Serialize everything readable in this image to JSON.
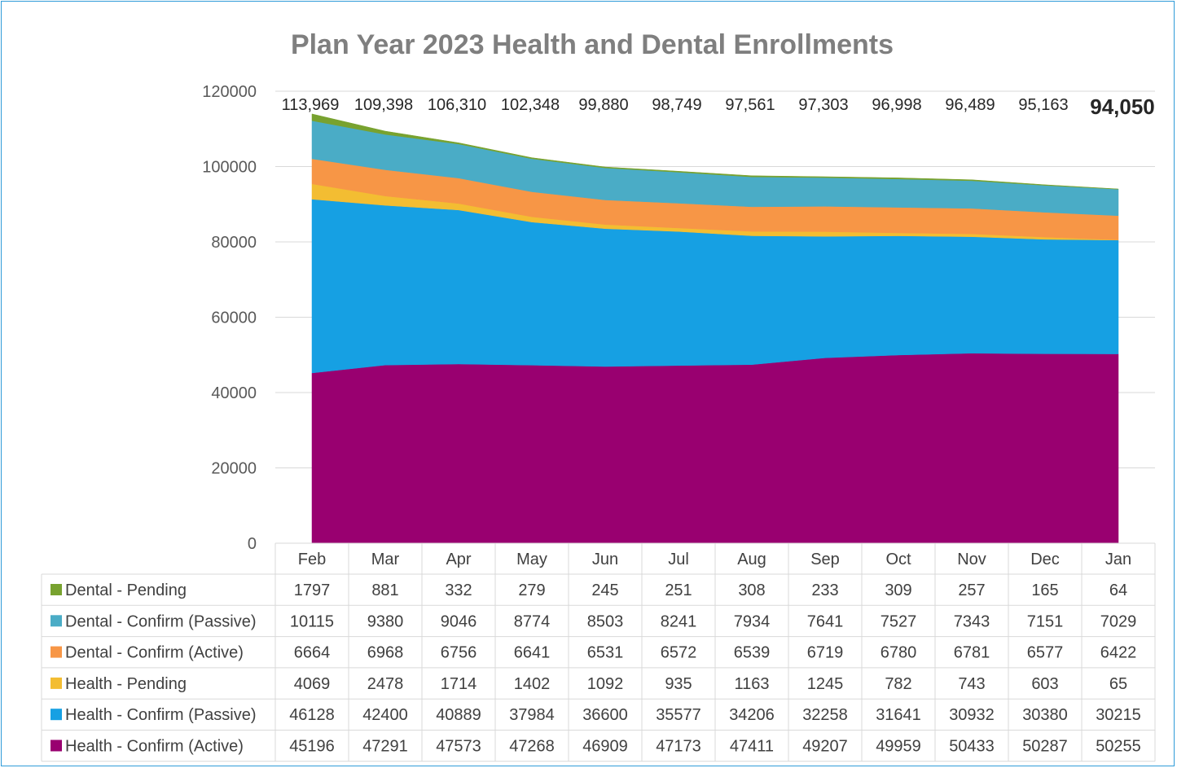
{
  "chart_data": {
    "type": "area",
    "stacked": true,
    "title": "Plan Year 2023 Health and Dental Enrollments",
    "categories": [
      "Feb",
      "Mar",
      "Apr",
      "May",
      "Jun",
      "Jul",
      "Aug",
      "Sep",
      "Oct",
      "Nov",
      "Dec",
      "Jan"
    ],
    "ylim": [
      0,
      120000
    ],
    "yticks": [
      "0",
      "20000",
      "40000",
      "60000",
      "80000",
      "100000",
      "120000"
    ],
    "grid": true,
    "legend": "data-table-left",
    "totals": [
      "113,969",
      "109,398",
      "106,310",
      "102,348",
      "99,880",
      "98,749",
      "97,561",
      "97,303",
      "96,998",
      "96,489",
      "95,163",
      "94,050"
    ],
    "series": [
      {
        "name": "Dental - Pending",
        "color": "#78a22f",
        "values": [
          1797,
          881,
          332,
          279,
          245,
          251,
          308,
          233,
          309,
          257,
          165,
          64
        ]
      },
      {
        "name": "Dental - Confirm (Passive)",
        "color": "#4aacc6",
        "values": [
          10115,
          9380,
          9046,
          8774,
          8503,
          8241,
          7934,
          7641,
          7527,
          7343,
          7151,
          7029
        ]
      },
      {
        "name": "Dental - Confirm (Active)",
        "color": "#f79646",
        "values": [
          6664,
          6968,
          6756,
          6641,
          6531,
          6572,
          6539,
          6719,
          6780,
          6781,
          6577,
          6422
        ]
      },
      {
        "name": "Health - Pending",
        "color": "#f3bd32",
        "values": [
          4069,
          2478,
          1714,
          1402,
          1092,
          935,
          1163,
          1245,
          782,
          743,
          603,
          65
        ]
      },
      {
        "name": "Health - Confirm (Passive)",
        "color": "#16a0e3",
        "values": [
          46128,
          42400,
          40889,
          37984,
          36600,
          35577,
          34206,
          32258,
          31641,
          30932,
          30380,
          30215
        ]
      },
      {
        "name": "Health - Confirm (Active)",
        "color": "#990070",
        "values": [
          45196,
          47291,
          47573,
          47268,
          46909,
          47173,
          47411,
          49207,
          49959,
          50433,
          50287,
          50255
        ]
      }
    ]
  }
}
